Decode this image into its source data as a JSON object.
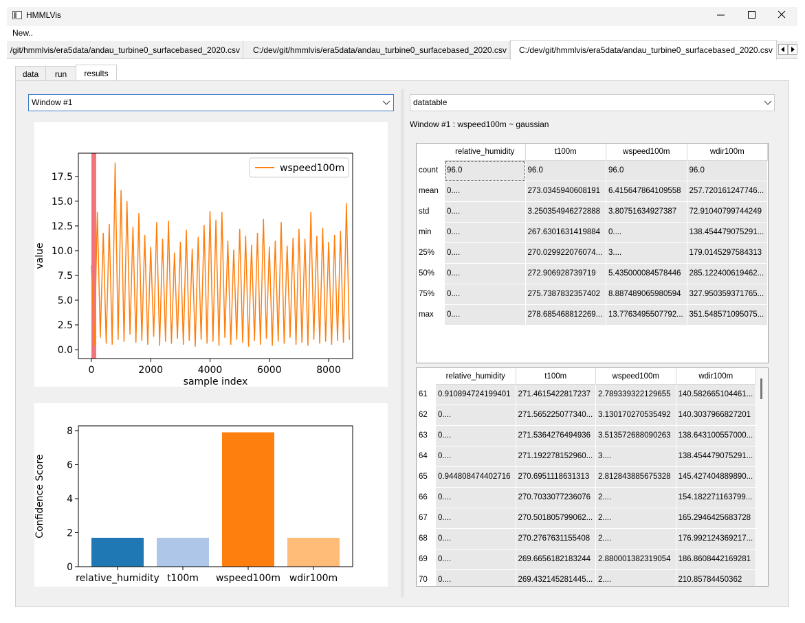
{
  "window": {
    "title": "HMMLVis"
  },
  "menu": [
    "New.."
  ],
  "file_tabs": [
    "/git/hmmlvis/era5data/andau_turbine0_surfacebased_2020.csv",
    "C:/dev/git/hmmlvis/era5data/andau_turbine0_surfacebased_2020.csv",
    "C:/dev/git/hmmlvis/era5data/andau_turbine0_surfacebased_2020.csv"
  ],
  "sub_tabs": [
    "data",
    "run",
    "results"
  ],
  "left_dropdown": "Window #1",
  "right_dropdown": "datatable",
  "caption": "Window #1 : wspeed100m ~ gaussian",
  "chart_data": [
    {
      "type": "line",
      "xlabel": "sample index",
      "ylabel": "value",
      "x": [
        0,
        100,
        200,
        300,
        400,
        500,
        600,
        700,
        800,
        900,
        1000,
        1100,
        1200,
        1300,
        1400,
        1500,
        1600,
        1700,
        1800,
        1900,
        2000,
        2100,
        2200,
        2300,
        2400,
        2500,
        2600,
        2700,
        2800,
        2900,
        3000,
        3100,
        3200,
        3300,
        3400,
        3500,
        3600,
        3700,
        3800,
        3900,
        4000,
        4100,
        4200,
        4300,
        4400,
        4500,
        4600,
        4700,
        4800,
        4900,
        5000,
        5100,
        5200,
        5300,
        5400,
        5500,
        5600,
        5700,
        5800,
        5900,
        6000,
        6100,
        6200,
        6300,
        6400,
        6500,
        6600,
        6700,
        6800,
        6900,
        7000,
        7100,
        7200,
        7300,
        7400,
        7500,
        7600,
        7700,
        7800,
        7900,
        8000,
        8100,
        8200,
        8300,
        8400,
        8500,
        8600,
        8700
      ],
      "series": [
        {
          "name": "wspeed100m",
          "color": "#ff7f0e",
          "values": [
            8.5,
            0.4,
            13.9,
            1.2,
            11.8,
            0.6,
            12.7,
            0.5,
            18.9,
            1.0,
            16.1,
            0.8,
            15.0,
            1.5,
            12.4,
            0.7,
            13.8,
            0.9,
            11.6,
            0.5,
            10.4,
            1.3,
            12.9,
            0.4,
            11.2,
            0.8,
            13.0,
            0.6,
            9.8,
            1.1,
            10.9,
            0.5,
            12.1,
            0.9,
            10.2,
            0.3,
            11.4,
            1.0,
            12.6,
            0.6,
            14.0,
            0.8,
            13.1,
            0.4,
            13.9,
            1.2,
            11.0,
            0.5,
            10.1,
            1.0,
            12.2,
            0.7,
            11.5,
            0.3,
            10.6,
            0.9,
            11.8,
            0.5,
            13.2,
            1.1,
            10.4,
            0.4,
            11.0,
            0.8,
            12.9,
            0.6,
            10.5,
            1.2,
            11.3,
            0.5,
            12.2,
            0.7,
            11.2,
            0.4,
            13.9,
            1.0,
            11.5,
            0.6,
            12.3,
            0.8,
            10.9,
            0.5,
            11.6,
            0.9,
            12.0,
            0.7,
            14.8,
            1.0
          ]
        }
      ],
      "highlight_x": [
        0,
        160
      ],
      "highlight_color": "#f0646e",
      "xlim": [
        -440,
        8810
      ],
      "xticks": [
        0,
        2000,
        4000,
        6000,
        8000
      ],
      "ylim": [
        -0.9,
        19.85
      ],
      "yticks": [
        {
          "value": 0,
          "label": "0.0"
        },
        2.5,
        {
          "value": 5,
          "label": "5.0"
        },
        7.5,
        {
          "value": 10,
          "label": "10.0"
        },
        12.5,
        {
          "value": 15,
          "label": "15.0"
        },
        17.5
      ],
      "legend": "upper right"
    },
    {
      "type": "bar",
      "ylabel": "Confidence Score",
      "categories": [
        "relative_humidity",
        "t100m",
        "wspeed100m",
        "wdir100m"
      ],
      "values": [
        1.7,
        1.7,
        7.9,
        1.7
      ],
      "colors": [
        "#1f77b4",
        "#aec7e8",
        "#ff7f0e",
        "#ffbb78"
      ],
      "ylim": [
        0,
        8.28
      ],
      "yticks": [
        0,
        2,
        4,
        6,
        8
      ]
    }
  ],
  "table_top": {
    "columns": [
      "relative_humidity",
      "t100m",
      "wspeed100m",
      "wdir100m"
    ],
    "rows": [
      {
        "label": "count",
        "cells": [
          "96.0",
          "96.0",
          "96.0",
          "96.0"
        ]
      },
      {
        "label": "mean",
        "cells": [
          "0....",
          "273.0345940608191",
          "6.415647864109558",
          "257.720161247746..."
        ]
      },
      {
        "label": "std",
        "cells": [
          "0....",
          "3.250354946272888",
          "3.80751634927387",
          "72.91040799744249"
        ]
      },
      {
        "label": "min",
        "cells": [
          "0....",
          "267.6301631419884",
          "0....",
          "138.454479075291..."
        ]
      },
      {
        "label": "25%",
        "cells": [
          "0....",
          "270.029922076074...",
          "3....",
          "179.0145297584313"
        ]
      },
      {
        "label": "50%",
        "cells": [
          "0....",
          "272.906928739719",
          "5.435000084578446",
          "285.122400619462..."
        ]
      },
      {
        "label": "75%",
        "cells": [
          "0....",
          "275.7387832357402",
          "8.887489065980594",
          "327.950359371765..."
        ]
      },
      {
        "label": "max",
        "cells": [
          "0....",
          "278.685468812269...",
          "13.7763495507792...",
          "351.548571095075..."
        ]
      }
    ]
  },
  "table_bottom": {
    "columns": [
      "relative_humidity",
      "t100m",
      "wspeed100m",
      "wdir100m"
    ],
    "rows": [
      {
        "label": "61",
        "cells": [
          "0.910894724199401",
          "271.4615422817237",
          "2.789339322129655",
          "140.582665104461..."
        ]
      },
      {
        "label": "62",
        "cells": [
          "0....",
          "271.565225077340...",
          "3.130170270535492",
          "140.3037966827201"
        ]
      },
      {
        "label": "63",
        "cells": [
          "0....",
          "271.5364276494936",
          "3.513572688090263",
          "138.643100557000..."
        ]
      },
      {
        "label": "64",
        "cells": [
          "0....",
          "271.192278152960...",
          "3....",
          "138.454479075291..."
        ]
      },
      {
        "label": "65",
        "cells": [
          "0.944808474402716",
          "270.6951118631313",
          "2.812843885675328",
          "145.427404889890..."
        ]
      },
      {
        "label": "66",
        "cells": [
          "0....",
          "270.7033077236076",
          "2....",
          "154.182271163799..."
        ]
      },
      {
        "label": "67",
        "cells": [
          "0....",
          "270.501805799062...",
          "2....",
          "165.2946425683728"
        ]
      },
      {
        "label": "68",
        "cells": [
          "0....",
          "270.2767631155408",
          "2....",
          "176.992124369217..."
        ]
      },
      {
        "label": "69",
        "cells": [
          "0....",
          "269.6656182183244",
          "2.880001382319054",
          "186.8608442169281"
        ]
      },
      {
        "label": "70",
        "cells": [
          "0....",
          "269.432145281445...",
          "2....",
          "210.85784450362"
        ]
      }
    ]
  }
}
